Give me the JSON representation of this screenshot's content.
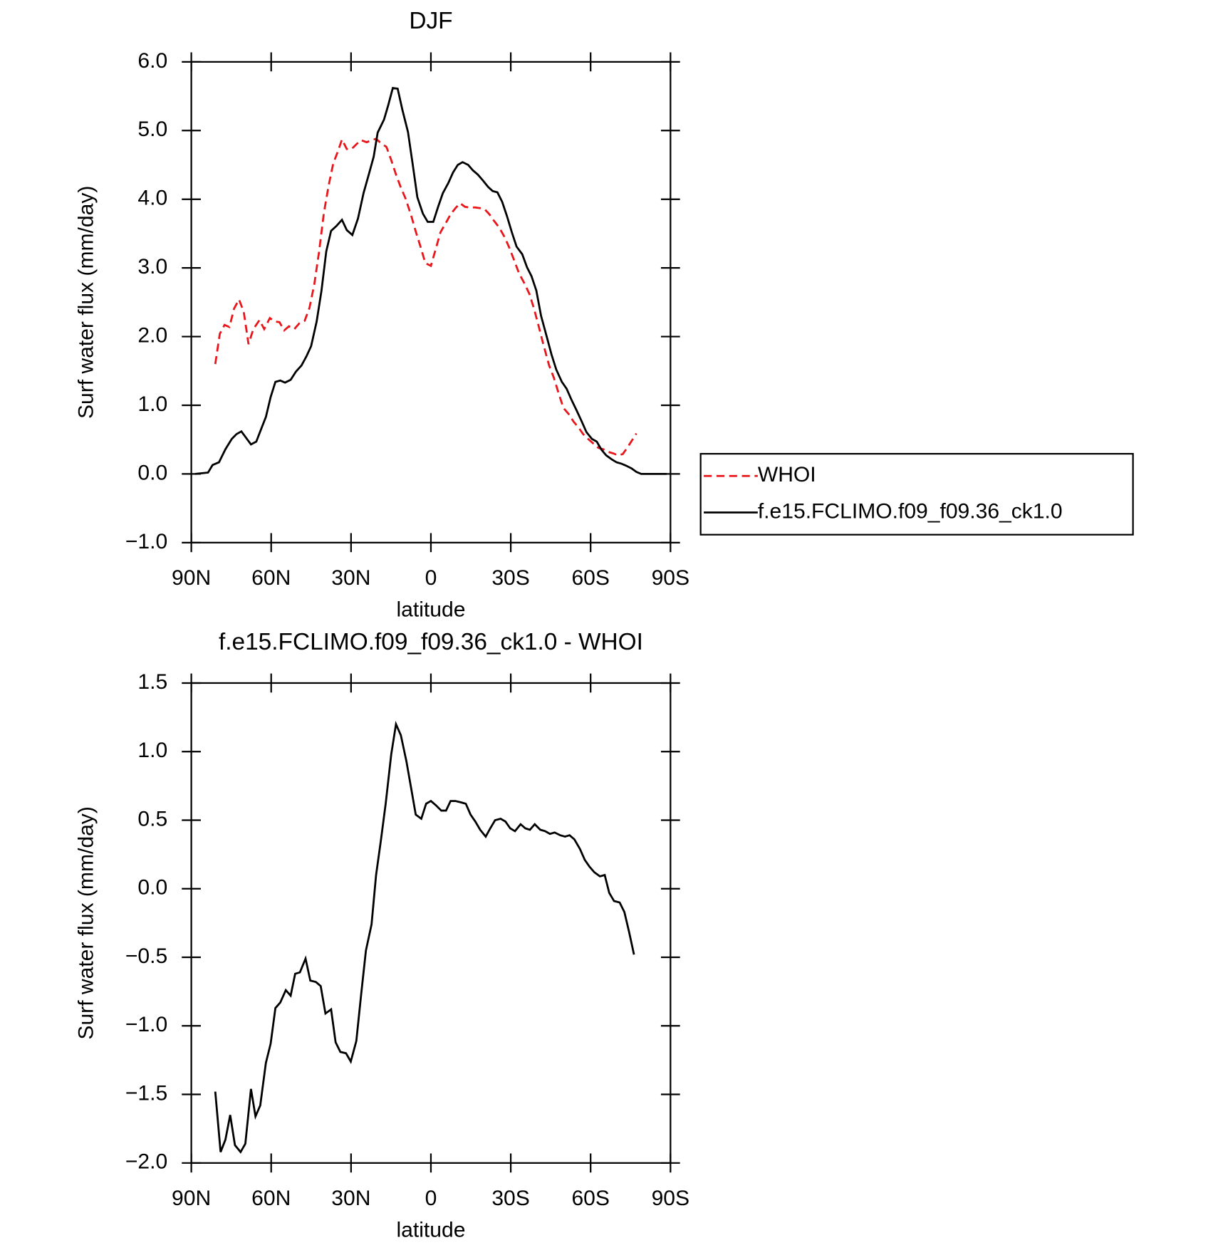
{
  "chart_data": [
    {
      "type": "line",
      "title": "DJF",
      "xlabel": "latitude",
      "ylabel": "Surf water flux (mm/day)",
      "xlim": [
        90,
        -90
      ],
      "xticks": [
        {
          "value": 90,
          "label": "90N"
        },
        {
          "value": 60,
          "label": "60N"
        },
        {
          "value": 30,
          "label": "30N"
        },
        0,
        {
          "value": -30,
          "label": "30S"
        },
        {
          "value": -60,
          "label": "60S"
        },
        {
          "value": -90,
          "label": "90S"
        }
      ],
      "ylim": [
        -1,
        6
      ],
      "yticks": [
        {
          "value": -1,
          "label": "−1.0"
        },
        {
          "value": 0,
          "label": "0.0"
        },
        {
          "value": 1,
          "label": "1.0"
        },
        {
          "value": 2,
          "label": "2.0"
        },
        {
          "value": 3,
          "label": "3.0"
        },
        {
          "value": 4,
          "label": "4.0"
        },
        {
          "value": 5,
          "label": "5.0"
        },
        {
          "value": 6,
          "label": "6.0"
        }
      ],
      "legend": "right",
      "series": [
        {
          "name": "WHOI",
          "color": "#e8161b",
          "dash": true,
          "x": [
            81,
            79.3,
            77.5,
            75.7,
            73.9,
            72.1,
            70.3,
            68.5,
            66.7,
            64.4,
            62.6,
            60.5,
            58.7,
            56.9,
            55.1,
            53.3,
            51.3,
            49.5,
            47.4,
            45.6,
            43.8,
            42,
            40.2,
            38.4,
            36.7,
            34.9,
            33.4,
            31.6,
            29.8,
            28,
            26.2,
            24.1,
            22.3,
            20.6,
            18.8,
            16.7,
            14.9,
            13.1,
            11.3,
            9.5,
            7.4,
            5.7,
            3.9,
            2.1,
            0,
            -1.8,
            -3.6,
            -5.7,
            -7.4,
            -9.2,
            -11,
            -12.8,
            -14.6,
            -16.7,
            -18.5,
            -20.3,
            -22,
            -23.8,
            -25.6,
            -27.7,
            -29.5,
            -31.3,
            -33.1,
            -35.2,
            -37,
            -38.7,
            -40.5,
            -42.3,
            -44.4,
            -46.2,
            -48,
            -49.8,
            -51.8,
            -53.6,
            -55.4,
            -57.2,
            -59.3,
            -61.1,
            -62.9,
            -64.7,
            -66.7,
            -68.5,
            -70.3,
            -72.1,
            -73.9,
            -75.4,
            -77.2
          ],
          "values": [
            1.6,
            2.04,
            2.17,
            2.14,
            2.41,
            2.54,
            2.36,
            1.89,
            2.11,
            2.24,
            2.11,
            2.27,
            2.22,
            2.21,
            2.09,
            2.15,
            2.11,
            2.19,
            2.23,
            2.42,
            2.76,
            3.24,
            3.8,
            4.2,
            4.52,
            4.7,
            4.87,
            4.73,
            4.73,
            4.8,
            4.86,
            4.83,
            4.86,
            4.88,
            4.82,
            4.76,
            4.57,
            4.36,
            4.17,
            4.01,
            3.76,
            3.53,
            3.31,
            3.07,
            3.03,
            3.27,
            3.52,
            3.66,
            3.78,
            3.87,
            3.94,
            3.89,
            3.88,
            3.88,
            3.87,
            3.85,
            3.78,
            3.68,
            3.59,
            3.45,
            3.29,
            3.11,
            2.92,
            2.77,
            2.62,
            2.41,
            2.15,
            1.88,
            1.58,
            1.4,
            1.17,
            0.96,
            0.87,
            0.76,
            0.68,
            0.58,
            0.5,
            0.44,
            0.38,
            0.36,
            0.32,
            0.3,
            0.27,
            0.29,
            0.39,
            0.48,
            0.59
          ]
        },
        {
          "name": "f.e15.FCLIMO.f09_f09.36_ck1.0",
          "color": "#000000",
          "dash": false,
          "x": [
            88.5,
            83.7,
            82,
            79.6,
            77.2,
            74.8,
            73,
            71.2,
            67.6,
            65.6,
            63.5,
            62,
            60.2,
            58.4,
            56.6,
            54.8,
            52.7,
            50.7,
            48.6,
            46.8,
            45,
            42.9,
            41.1,
            39.3,
            37.5,
            35.5,
            33.4,
            31.6,
            29.5,
            27.4,
            25.3,
            23.2,
            21.5,
            20,
            17.6,
            16.1,
            14.3,
            12.5,
            10.7,
            8.6,
            6.9,
            5.1,
            3,
            1.2,
            -0.9,
            -2.7,
            -4.5,
            -6.6,
            -8.3,
            -10.1,
            -11.9,
            -14,
            -15.8,
            -17.6,
            -19.4,
            -21.5,
            -23.2,
            -25,
            -26.8,
            -28.6,
            -30.4,
            -32.2,
            -34.3,
            -36.1,
            -37.8,
            -39.6,
            -41.4,
            -43.5,
            -45.3,
            -47.1,
            -49.2,
            -51,
            -52.7,
            -54.8,
            -56.6,
            -58.4,
            -60.5,
            -62.3,
            -64.1,
            -65.9,
            -68,
            -69.7,
            -71.5,
            -73.3,
            -75.4,
            -77.2,
            -79,
            -88.5
          ],
          "values": [
            0,
            0.02,
            0.13,
            0.17,
            0.36,
            0.51,
            0.58,
            0.62,
            0.43,
            0.47,
            0.68,
            0.83,
            1.12,
            1.34,
            1.36,
            1.33,
            1.37,
            1.49,
            1.58,
            1.71,
            1.86,
            2.22,
            2.67,
            3.24,
            3.54,
            3.61,
            3.7,
            3.55,
            3.48,
            3.72,
            4.09,
            4.38,
            4.62,
            4.97,
            5.16,
            5.36,
            5.62,
            5.61,
            5.3,
            4.98,
            4.53,
            4.03,
            3.79,
            3.67,
            3.67,
            3.89,
            4.09,
            4.24,
            4.39,
            4.5,
            4.54,
            4.5,
            4.42,
            4.36,
            4.28,
            4.18,
            4.12,
            4.1,
            3.96,
            3.75,
            3.52,
            3.31,
            3.2,
            3.01,
            2.88,
            2.67,
            2.3,
            2,
            1.74,
            1.52,
            1.34,
            1.24,
            1.09,
            0.92,
            0.77,
            0.61,
            0.51,
            0.47,
            0.35,
            0.27,
            0.21,
            0.17,
            0.15,
            0.12,
            0.08,
            0.03,
            0,
            0
          ]
        }
      ]
    },
    {
      "type": "line",
      "title": "f.e15.FCLIMO.f09_f09.36_ck1.0 - WHOI",
      "xlabel": "latitude",
      "ylabel": "Surf water flux (mm/day)",
      "xlim": [
        90,
        -90
      ],
      "xticks": [
        {
          "value": 90,
          "label": "90N"
        },
        {
          "value": 60,
          "label": "60N"
        },
        {
          "value": 30,
          "label": "30N"
        },
        0,
        {
          "value": -30,
          "label": "30S"
        },
        {
          "value": -60,
          "label": "60S"
        },
        {
          "value": -90,
          "label": "90S"
        }
      ],
      "ylim": [
        -2,
        1.5
      ],
      "yticks": [
        {
          "value": -2,
          "label": "−2.0"
        },
        {
          "value": -1.5,
          "label": "−1.5"
        },
        {
          "value": -1,
          "label": "−1.0"
        },
        {
          "value": -0.5,
          "label": "−0.5"
        },
        {
          "value": 0,
          "label": "0.0"
        },
        0.5,
        {
          "value": 1,
          "label": "1.0"
        },
        1.5
      ],
      "series": [
        {
          "color": "#000000",
          "dash": false,
          "x": [
            81,
            79,
            77.2,
            75.4,
            73.6,
            71.5,
            69.7,
            67.6,
            65.9,
            64.1,
            62,
            60.2,
            58.4,
            56.6,
            54.5,
            52.7,
            51,
            49.2,
            47.1,
            45.3,
            43.2,
            41.4,
            39.6,
            37.5,
            35.8,
            34,
            31.9,
            30.1,
            28,
            26.2,
            24.4,
            22.3,
            20.6,
            18.8,
            17,
            14.9,
            13.1,
            11.3,
            9.2,
            7.4,
            5.7,
            3.6,
            1.8,
            0,
            -1.8,
            -3.9,
            -5.7,
            -7.4,
            -9.2,
            -11.3,
            -13.1,
            -14.9,
            -16.7,
            -18.5,
            -20.6,
            -22.3,
            -24.1,
            -26.2,
            -28,
            -29.8,
            -31.6,
            -33.7,
            -35.5,
            -37.2,
            -39,
            -41.1,
            -42.9,
            -44.7,
            -46.5,
            -48.6,
            -50.4,
            -52.1,
            -53.9,
            -56,
            -57.8,
            -59.6,
            -61.4,
            -63.5,
            -65.3,
            -67,
            -68.8,
            -70.9,
            -72.7,
            -74.5,
            -76.3
          ],
          "values": [
            -1.48,
            -1.92,
            -1.83,
            -1.65,
            -1.87,
            -1.92,
            -1.86,
            -1.46,
            -1.66,
            -1.58,
            -1.27,
            -1.13,
            -0.87,
            -0.83,
            -0.74,
            -0.78,
            -0.62,
            -0.61,
            -0.51,
            -0.67,
            -0.68,
            -0.71,
            -0.91,
            -0.88,
            -1.12,
            -1.19,
            -1.2,
            -1.26,
            -1.11,
            -0.77,
            -0.45,
            -0.26,
            0.1,
            0.35,
            0.62,
            0.98,
            1.2,
            1.12,
            0.93,
            0.73,
            0.54,
            0.51,
            0.62,
            0.64,
            0.61,
            0.57,
            0.57,
            0.64,
            0.64,
            0.63,
            0.62,
            0.54,
            0.49,
            0.43,
            0.38,
            0.44,
            0.5,
            0.51,
            0.49,
            0.44,
            0.42,
            0.47,
            0.44,
            0.43,
            0.47,
            0.43,
            0.42,
            0.4,
            0.41,
            0.39,
            0.38,
            0.39,
            0.36,
            0.29,
            0.21,
            0.16,
            0.12,
            0.09,
            0.1,
            -0.03,
            -0.09,
            -0.1,
            -0.17,
            -0.32,
            -0.48
          ]
        }
      ]
    }
  ]
}
